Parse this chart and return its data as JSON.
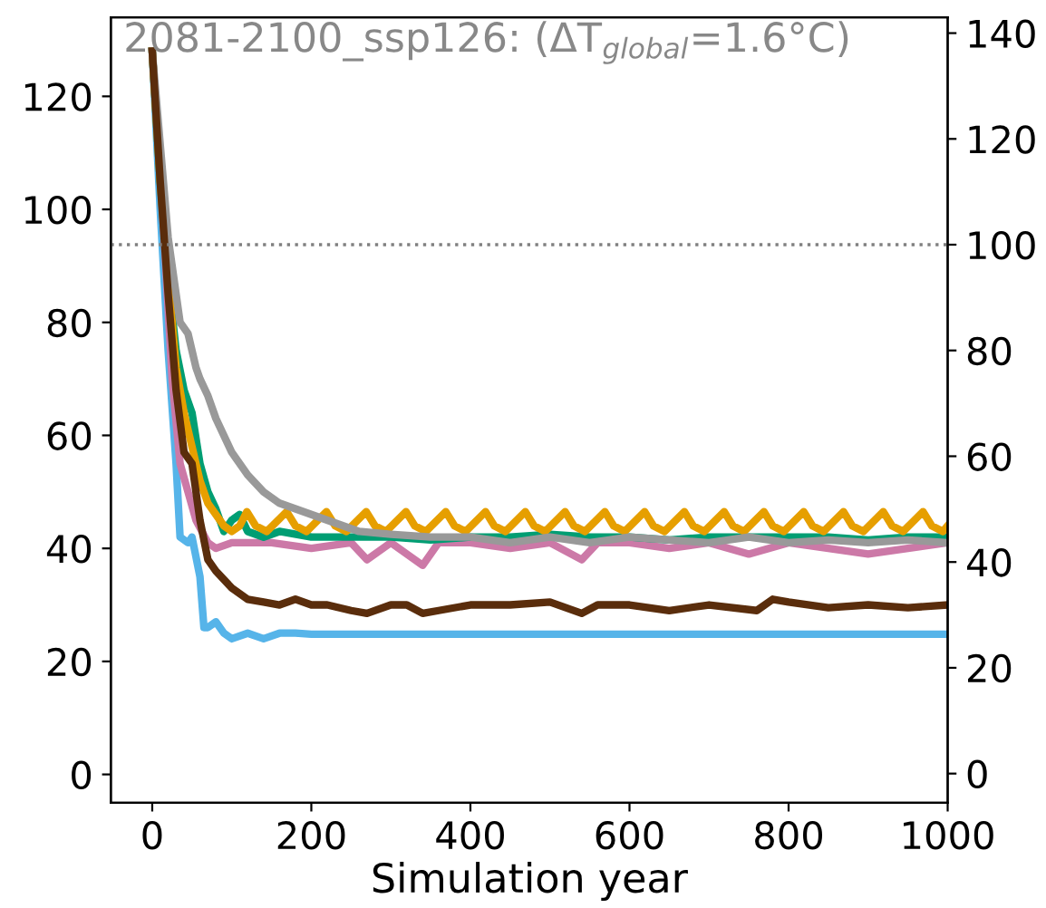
{
  "chart_data": {
    "type": "line",
    "title": "2081-2100_ssp126: (ΔT$_{global}$=1.6°C)",
    "xlabel": "Simulation year",
    "xlim": [
      -52,
      1000
    ],
    "xticks": [
      0,
      200,
      400,
      600,
      800,
      1000
    ],
    "ylim": [
      -5,
      134
    ],
    "yticks": [
      0,
      20,
      40,
      60,
      80,
      100,
      120
    ],
    "y2lim": [
      -5.5,
      143
    ],
    "y2ticks": [
      0,
      20,
      40,
      60,
      80,
      100,
      120,
      140
    ],
    "grid": false,
    "legend": false,
    "line_style": "solid",
    "marker": "none",
    "ref_lines": [
      {
        "axis": "y2",
        "value": 100,
        "color": "#808080",
        "line_style": "dotted"
      }
    ],
    "series": [
      {
        "color": "#56b4e9",
        "x": [
          0,
          10,
          20,
          30,
          35,
          45,
          50,
          60,
          65,
          70,
          80,
          90,
          100,
          120,
          140,
          160,
          180,
          200,
          1000
        ],
        "values": [
          128,
          100,
          75,
          55,
          42,
          41,
          42,
          35,
          26,
          26,
          27,
          25,
          24,
          25,
          24,
          25,
          25,
          24.8,
          24.8
        ]
      },
      {
        "color": "#cc79a7",
        "x": [
          0,
          15,
          25,
          35,
          45,
          55,
          70,
          80,
          100,
          150,
          200,
          250,
          270,
          300,
          340,
          360,
          400,
          450,
          500,
          540,
          560,
          600,
          650,
          700,
          750,
          800,
          850,
          900,
          950,
          1000
        ],
        "values": [
          128,
          95,
          70,
          55,
          50,
          45,
          41,
          40,
          41,
          41,
          40,
          41,
          38,
          41,
          37,
          41,
          41,
          40,
          41,
          38,
          41,
          41,
          40,
          41,
          39,
          41,
          40,
          39,
          40,
          41
        ]
      },
      {
        "color": "#009e73",
        "x": [
          0,
          10,
          20,
          30,
          40,
          50,
          60,
          70,
          80,
          90,
          100,
          110,
          120,
          140,
          160,
          200,
          250,
          300,
          350,
          400,
          450,
          500,
          550,
          600,
          650,
          700,
          750,
          800,
          850,
          900,
          950,
          1000
        ],
        "values": [
          128,
          105,
          88,
          75,
          68,
          64,
          55,
          50,
          47,
          43,
          45,
          46,
          43,
          42,
          43,
          42,
          42,
          42,
          41.5,
          42,
          42,
          42.5,
          42,
          42,
          41.5,
          42,
          42,
          42,
          42,
          41.5,
          42,
          42
        ]
      },
      {
        "color": "#e69f00",
        "x": [
          0,
          10,
          20,
          30,
          40,
          50,
          60,
          70,
          80,
          90,
          100,
          110,
          119,
          130,
          144,
          169,
          180,
          194,
          219,
          230,
          244,
          269,
          280,
          294,
          319,
          330,
          344,
          369,
          380,
          394,
          419,
          430,
          444,
          469,
          480,
          494,
          519,
          530,
          544,
          569,
          580,
          594,
          619,
          630,
          644,
          669,
          680,
          694,
          719,
          730,
          744,
          769,
          780,
          794,
          819,
          830,
          844,
          869,
          880,
          894,
          919,
          930,
          944,
          969,
          980,
          994,
          1000
        ],
        "values": [
          128,
          105,
          88,
          72,
          64,
          58,
          52,
          48,
          46,
          44,
          43,
          44,
          46.5,
          44,
          43,
          46.5,
          44,
          43,
          46.5,
          44,
          43,
          46.5,
          44,
          43,
          46.5,
          44,
          43,
          46.5,
          44,
          43,
          46.5,
          44,
          43,
          46.5,
          44,
          43,
          46.5,
          44,
          43,
          46.5,
          44,
          43,
          46.5,
          44,
          43,
          46.5,
          44,
          43,
          46.5,
          44,
          43,
          46.5,
          44,
          43,
          46.5,
          44,
          43,
          46.5,
          44,
          43,
          46.5,
          44,
          43,
          46.5,
          44,
          43,
          44
        ]
      },
      {
        "color": "#999999",
        "x": [
          0,
          20,
          35,
          45,
          55,
          60,
          70,
          80,
          90,
          100,
          120,
          140,
          160,
          180,
          200,
          220,
          240,
          260,
          300,
          350,
          400,
          450,
          500,
          550,
          600,
          650,
          700,
          750,
          800,
          850,
          900,
          950,
          1000
        ],
        "values": [
          128,
          95,
          80,
          78,
          72,
          70,
          67,
          63,
          60,
          57,
          53,
          50,
          48,
          47,
          46,
          45,
          44,
          43,
          42.5,
          42,
          42,
          41,
          42,
          41,
          42,
          41.5,
          41,
          42,
          41,
          41.5,
          41,
          41.5,
          41
        ]
      },
      {
        "color": "#5a2d0c",
        "x": [
          0,
          10,
          20,
          30,
          40,
          50,
          60,
          70,
          80,
          100,
          120,
          140,
          160,
          180,
          200,
          220,
          250,
          270,
          300,
          320,
          340,
          360,
          400,
          450,
          500,
          540,
          560,
          600,
          650,
          700,
          760,
          780,
          800,
          850,
          900,
          950,
          1000
        ],
        "values": [
          128,
          105,
          85,
          68,
          57,
          55,
          45,
          38,
          36,
          33,
          31,
          30.5,
          30,
          31,
          30,
          30,
          29,
          28.5,
          30,
          30,
          28.5,
          29,
          30,
          30,
          30.5,
          28.5,
          30,
          30,
          29,
          30,
          29,
          31,
          30.5,
          29.5,
          30,
          29.5,
          30
        ]
      }
    ]
  }
}
